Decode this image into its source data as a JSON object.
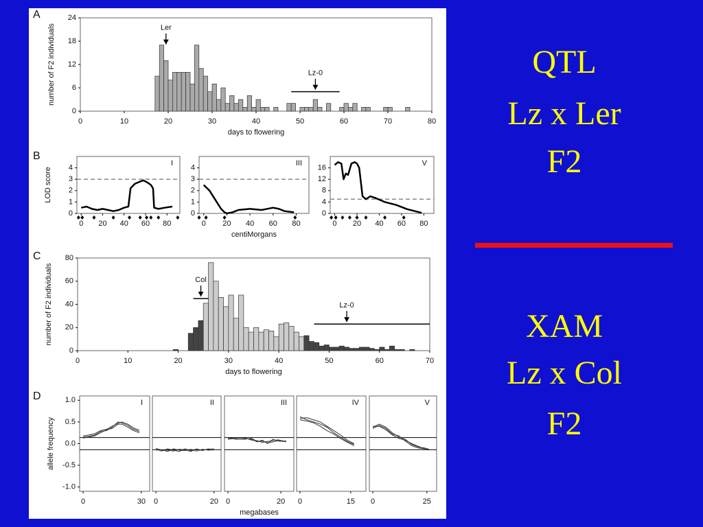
{
  "chart_data": [
    {
      "type": "histogram",
      "xlabel": "days to flowering",
      "ylabel": "number of F2 individuals",
      "color": "#aaaaaa",
      "bins": [
        17,
        18,
        19,
        20,
        21,
        22,
        23,
        24,
        25,
        26,
        27,
        28,
        29,
        30,
        31,
        32,
        33,
        34,
        35,
        36,
        37,
        38,
        39,
        40,
        41,
        42,
        43,
        44,
        45,
        46,
        47,
        48,
        49,
        50,
        51,
        52,
        53,
        54,
        55,
        56,
        57,
        58,
        59,
        60,
        61,
        62,
        63,
        64,
        65,
        66,
        67,
        68,
        69,
        70,
        71,
        72,
        73,
        74,
        75
      ],
      "values": [
        9,
        17,
        13,
        8,
        10,
        10,
        10,
        10,
        7,
        17,
        11,
        9,
        5,
        7,
        3,
        6,
        2,
        4,
        2,
        3,
        1,
        4,
        1,
        3,
        1,
        1,
        0,
        1,
        0,
        0,
        2,
        2,
        0,
        1,
        1,
        1,
        3,
        1,
        0,
        2,
        0,
        0,
        1,
        2,
        1,
        2,
        0,
        1,
        1,
        0,
        0,
        0,
        1,
        1,
        0,
        0,
        0,
        1
      ],
      "xlim": [
        0,
        80
      ],
      "xticks": [
        0,
        10,
        20,
        30,
        40,
        50,
        60,
        70,
        80
      ],
      "ylim": [
        0,
        24
      ],
      "yticks": [
        0,
        6,
        12,
        18,
        24
      ],
      "annotations": [
        {
          "text": "Ler",
          "x": 19.5,
          "y": 17
        },
        {
          "text": "Lz-0",
          "x": 53.5,
          "y": 5,
          "range": [
            48,
            59
          ]
        }
      ]
    },
    {
      "type": "line",
      "title": "I",
      "ylabel": "LOD score",
      "color": "#000000",
      "x": [
        0,
        5,
        10,
        15,
        20,
        25,
        30,
        35,
        40,
        44,
        46,
        50,
        55,
        58,
        62,
        65,
        67,
        68,
        72,
        78,
        85
      ],
      "values": [
        0.5,
        0.6,
        0.4,
        0.3,
        0.4,
        0.3,
        0.2,
        0.3,
        0.5,
        0.6,
        2.2,
        2.6,
        2.8,
        2.9,
        2.7,
        2.5,
        2.2,
        0.5,
        0.4,
        0.5,
        0.6
      ],
      "threshold": 3,
      "markers": [
        -2.5,
        1,
        12,
        30,
        45,
        55,
        61,
        65,
        72,
        90
      ],
      "xlim": [
        -4,
        92
      ],
      "xticks": [
        0,
        20,
        40,
        60,
        80
      ],
      "ylim": [
        0,
        5
      ],
      "yticks": [
        0,
        1,
        2,
        3,
        4
      ]
    },
    {
      "type": "line",
      "title": "III",
      "xlabel": "centiMorgans",
      "color": "#000000",
      "x": [
        0,
        5,
        10,
        15,
        18,
        20,
        25,
        30,
        40,
        50,
        60,
        65,
        70,
        78
      ],
      "values": [
        2.5,
        2.0,
        1.2,
        0.4,
        0.1,
        0.0,
        0.1,
        0.3,
        0.4,
        0.3,
        0.5,
        0.4,
        0.2,
        0.1
      ],
      "threshold": 3,
      "markers": [
        -4,
        2,
        18,
        79
      ],
      "xlim": [
        -4,
        91
      ],
      "xticks": [
        0,
        20,
        40,
        60,
        80
      ],
      "ylim": [
        0,
        5
      ],
      "yticks": [
        0,
        1,
        2,
        3,
        4
      ]
    },
    {
      "type": "line",
      "title": "V",
      "color": "#000000",
      "x": [
        0,
        3,
        6,
        8,
        10,
        12,
        15,
        18,
        20,
        22,
        25,
        28,
        32,
        36,
        45,
        55,
        65,
        75,
        78
      ],
      "values": [
        17,
        18,
        17.5,
        12,
        14,
        13.5,
        17.5,
        18,
        17.5,
        16,
        6,
        5,
        6,
        5.5,
        4,
        3,
        1.5,
        0.5,
        0.2
      ],
      "threshold": 5,
      "markers": [
        -3,
        1,
        7,
        13.5,
        20,
        28,
        45,
        62
      ],
      "xlim": [
        -4,
        89
      ],
      "xticks": [
        0,
        20,
        40,
        60,
        80
      ],
      "ylim": [
        0,
        20
      ],
      "yticks": [
        0,
        4,
        8,
        12,
        16
      ]
    },
    {
      "type": "histogram",
      "xlabel": "days to flowering",
      "ylabel": "number of F2 individuals",
      "bins": [
        19,
        20,
        21,
        22,
        23,
        24,
        25,
        26,
        27,
        28,
        29,
        30,
        31,
        32,
        33,
        34,
        35,
        36,
        37,
        38,
        39,
        40,
        41,
        42,
        43,
        44,
        45,
        46,
        47,
        48,
        49,
        50,
        51,
        52,
        53,
        54,
        55,
        56,
        57,
        58,
        59,
        60,
        61,
        62,
        63,
        64,
        65,
        66,
        67
      ],
      "values": [
        1,
        0,
        0,
        15,
        20,
        26,
        41,
        76,
        60,
        46,
        38,
        48,
        28,
        48,
        20,
        16,
        20,
        16,
        18,
        17,
        12,
        23,
        24,
        21,
        16,
        12,
        13,
        8,
        7,
        4,
        5,
        3,
        3,
        4,
        3,
        2,
        2,
        3,
        3,
        2,
        1,
        3,
        1,
        4,
        1,
        1,
        0,
        1
      ],
      "bar_colors": [
        "#444444",
        "#444444",
        "#444444",
        "#444444",
        "#444444",
        "#444444",
        "#cccccc",
        "#cccccc",
        "#cccccc",
        "#cccccc",
        "#cccccc",
        "#cccccc",
        "#cccccc",
        "#cccccc",
        "#cccccc",
        "#cccccc",
        "#cccccc",
        "#cccccc",
        "#cccccc",
        "#cccccc",
        "#cccccc",
        "#cccccc",
        "#cccccc",
        "#cccccc",
        "#cccccc",
        "#cccccc",
        "#444444",
        "#444444",
        "#444444",
        "#444444",
        "#444444",
        "#444444",
        "#444444",
        "#444444",
        "#444444",
        "#444444",
        "#444444",
        "#444444",
        "#444444",
        "#444444",
        "#444444",
        "#444444",
        "#444444",
        "#444444",
        "#444444",
        "#444444",
        "#444444",
        "#444444"
      ],
      "xlim": [
        0,
        70
      ],
      "xticks": [
        0,
        10,
        20,
        30,
        40,
        50,
        60,
        70
      ],
      "ylim": [
        0,
        80
      ],
      "yticks": [
        0,
        20,
        40,
        60,
        80
      ],
      "annotations": [
        {
          "text": "Col",
          "x": 24.5,
          "y": 45,
          "range": [
            23,
            26
          ]
        },
        {
          "text": "Lz-0",
          "x": 53.5,
          "y": 23,
          "range": [
            47,
            70
          ]
        }
      ]
    },
    {
      "type": "line",
      "title": "I",
      "ylabel": "allele frequency",
      "color": "#333333",
      "hlines": [
        0.14,
        -0.14
      ],
      "x": [
        0,
        3,
        6,
        9,
        12,
        15,
        18,
        20,
        23,
        26,
        29
      ],
      "series": [
        {
          "values": [
            0.15,
            0.17,
            0.2,
            0.28,
            0.3,
            0.38,
            0.5,
            0.48,
            0.42,
            0.33,
            0.28
          ]
        },
        {
          "values": [
            0.18,
            0.2,
            0.23,
            0.3,
            0.33,
            0.4,
            0.47,
            0.5,
            0.45,
            0.36,
            0.31
          ]
        },
        {
          "values": [
            0.13,
            0.15,
            0.18,
            0.25,
            0.32,
            0.35,
            0.45,
            0.45,
            0.38,
            0.3,
            0.25
          ]
        }
      ],
      "xlim": [
        -1.8,
        34.3
      ],
      "xticks": [
        0,
        30
      ],
      "ylim": [
        -1.1,
        1.1
      ],
      "yticks": [
        {
          "value": 1,
          "label": "1.0"
        },
        0.5,
        {
          "value": 0,
          "label": "0.0"
        },
        -0.5,
        {
          "value": -1,
          "label": "-1.0"
        }
      ]
    },
    {
      "type": "line",
      "title": "II",
      "color": "#333333",
      "hlines": [
        0.14,
        -0.14
      ],
      "x": [
        0,
        2,
        4,
        6,
        8,
        10,
        12,
        14,
        16,
        18,
        20
      ],
      "series": [
        {
          "values": [
            -0.13,
            -0.17,
            -0.12,
            -0.15,
            -0.18,
            -0.12,
            -0.16,
            -0.14,
            -0.15,
            -0.13,
            -0.12
          ]
        },
        {
          "values": [
            -0.15,
            -0.14,
            -0.18,
            -0.12,
            -0.15,
            -0.16,
            -0.13,
            -0.17,
            -0.13,
            -0.15,
            -0.14
          ]
        },
        {
          "values": [
            -0.11,
            -0.15,
            -0.15,
            -0.17,
            -0.13,
            -0.14,
            -0.18,
            -0.12,
            -0.16,
            -0.12,
            -0.15
          ]
        }
      ],
      "xlim": [
        -1.2,
        22.4
      ],
      "xticks": [
        0,
        20
      ],
      "ylim": [
        -1.1,
        1.1
      ]
    },
    {
      "type": "line",
      "title": "III",
      "xlabel": "megabases",
      "color": "#333333",
      "hlines": [
        0.14,
        -0.14
      ],
      "x": [
        0,
        3,
        6,
        9,
        11,
        13,
        15,
        17,
        19,
        22
      ],
      "series": [
        {
          "values": [
            0.12,
            0.14,
            0.12,
            0.1,
            0.04,
            0.08,
            0.0,
            0.1,
            0.06,
            0.05
          ]
        },
        {
          "values": [
            0.1,
            0.12,
            0.14,
            0.08,
            0.07,
            0.03,
            0.05,
            0.07,
            0.09,
            0.04
          ]
        },
        {
          "values": [
            0.14,
            0.1,
            0.1,
            0.12,
            0.05,
            0.06,
            0.02,
            0.04,
            0.07,
            0.06
          ]
        }
      ],
      "xlim": [
        -1.3,
        24.9
      ],
      "xticks": [
        0,
        20
      ],
      "ylim": [
        -1.1,
        1.1
      ]
    },
    {
      "type": "line",
      "title": "IV",
      "color": "#333333",
      "hlines": [
        0.14,
        -0.14
      ],
      "x": [
        0,
        2,
        4,
        6,
        8,
        10,
        12,
        14,
        16
      ],
      "series": [
        {
          "values": [
            0.58,
            0.6,
            0.55,
            0.5,
            0.4,
            0.3,
            0.2,
            0.08,
            0.0
          ]
        },
        {
          "values": [
            0.62,
            0.55,
            0.5,
            0.45,
            0.38,
            0.25,
            0.15,
            0.05,
            -0.02
          ]
        },
        {
          "values": [
            0.55,
            0.52,
            0.48,
            0.4,
            0.3,
            0.22,
            0.12,
            0.03,
            -0.05
          ]
        }
      ],
      "xlim": [
        -1,
        19.5
      ],
      "xticks": [
        0,
        15
      ],
      "ylim": [
        -1.1,
        1.1
      ]
    },
    {
      "type": "line",
      "title": "V",
      "color": "#333333",
      "hlines": [
        0.14,
        -0.14
      ],
      "x": [
        0,
        3,
        6,
        9,
        12,
        15,
        18,
        21,
        24,
        26
      ],
      "series": [
        {
          "values": [
            0.38,
            0.45,
            0.38,
            0.25,
            0.15,
            0.1,
            -0.02,
            -0.08,
            -0.1,
            -0.13
          ]
        },
        {
          "values": [
            0.35,
            0.42,
            0.35,
            0.22,
            0.18,
            0.06,
            -0.05,
            -0.1,
            -0.12,
            -0.15
          ]
        },
        {
          "values": [
            0.4,
            0.4,
            0.32,
            0.2,
            0.12,
            0.08,
            0.0,
            -0.06,
            -0.12,
            -0.14
          ]
        }
      ],
      "xlim": [
        -1.6,
        29.5
      ],
      "xticks": [
        0,
        25
      ],
      "ylim": [
        -1.1,
        1.1
      ]
    }
  ],
  "panel_labels": [
    "A",
    "B",
    "C",
    "D"
  ],
  "slide": {
    "qtl": [
      "QTL",
      "Lz x Ler",
      "F2"
    ],
    "xam": [
      "XAM",
      "Lz x Col",
      "F2"
    ]
  }
}
